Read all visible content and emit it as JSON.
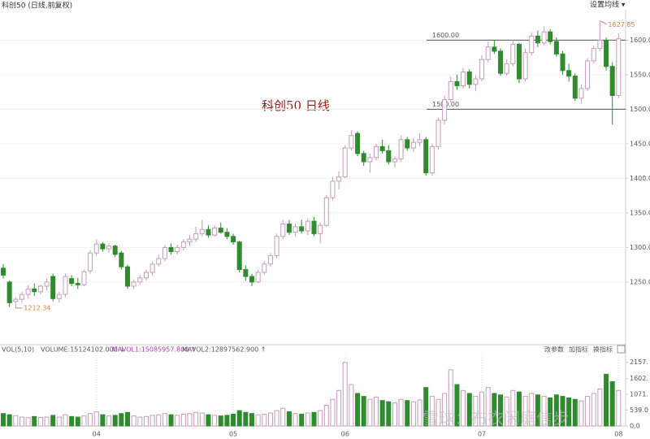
{
  "header": {
    "title": "科创50 (日线,前复权)",
    "ma_button": "设置均线 ▾"
  },
  "chart_data": {
    "type": "candlestick",
    "title": "科创50   日线",
    "up_color": "#c89ab8",
    "down_color": "#2e8b2e",
    "ylim": [
      1164,
      1644
    ],
    "yticks": [
      {
        "value": 1250,
        "label": "1250.00"
      },
      {
        "value": 1300,
        "label": "1300.00"
      },
      {
        "value": 1350,
        "label": "1350.00"
      },
      {
        "value": 1400,
        "label": "1400.00"
      },
      {
        "value": 1450,
        "label": "1450.00"
      },
      {
        "value": 1500,
        "label": "1500.00"
      },
      {
        "value": 1550,
        "label": "1550.00"
      },
      {
        "value": 1600,
        "label": "1600.00"
      }
    ],
    "grid": true,
    "xticks": [
      {
        "value": 15,
        "label": "04"
      },
      {
        "value": 37,
        "label": "05"
      },
      {
        "value": 55,
        "label": "06"
      },
      {
        "value": 77,
        "label": "07"
      },
      {
        "value": 99,
        "label": "08"
      }
    ],
    "hlines": [
      {
        "value": 1600,
        "label": "1600.00"
      },
      {
        "value": 1500,
        "label": "1500.00"
      }
    ],
    "annotations": [
      {
        "index": 2,
        "value": 1212.34,
        "label": "1212.34"
      },
      {
        "index": 96,
        "value": 1627.85,
        "label": "1627.85"
      }
    ],
    "candles": [
      [
        1270,
        1276,
        1255,
        1260
      ],
      [
        1250,
        1252,
        1214,
        1220
      ],
      [
        1222,
        1228,
        1212.34,
        1225
      ],
      [
        1225,
        1236,
        1220,
        1232
      ],
      [
        1232,
        1245,
        1226,
        1240
      ],
      [
        1240,
        1248,
        1230,
        1236
      ],
      [
        1236,
        1246,
        1232,
        1244
      ],
      [
        1244,
        1255,
        1238,
        1250
      ],
      [
        1258,
        1262,
        1222,
        1226
      ],
      [
        1226,
        1236,
        1220,
        1232
      ],
      [
        1232,
        1262,
        1228,
        1258
      ],
      [
        1255,
        1260,
        1244,
        1248
      ],
      [
        1248,
        1256,
        1240,
        1246
      ],
      [
        1246,
        1268,
        1244,
        1265
      ],
      [
        1266,
        1296,
        1262,
        1292
      ],
      [
        1292,
        1312,
        1288,
        1305
      ],
      [
        1305,
        1308,
        1294,
        1298
      ],
      [
        1298,
        1306,
        1292,
        1302
      ],
      [
        1302,
        1304,
        1286,
        1290
      ],
      [
        1292,
        1295,
        1268,
        1272
      ],
      [
        1272,
        1275,
        1240,
        1244
      ],
      [
        1244,
        1254,
        1240,
        1250
      ],
      [
        1250,
        1260,
        1246,
        1256
      ],
      [
        1256,
        1268,
        1252,
        1264
      ],
      [
        1264,
        1280,
        1260,
        1276
      ],
      [
        1276,
        1290,
        1272,
        1284
      ],
      [
        1284,
        1304,
        1280,
        1300
      ],
      [
        1300,
        1306,
        1290,
        1294
      ],
      [
        1294,
        1304,
        1290,
        1300
      ],
      [
        1300,
        1312,
        1296,
        1308
      ],
      [
        1308,
        1318,
        1302,
        1312
      ],
      [
        1312,
        1330,
        1308,
        1320
      ],
      [
        1320,
        1340,
        1316,
        1326
      ],
      [
        1326,
        1332,
        1314,
        1318
      ],
      [
        1318,
        1332,
        1316,
        1328
      ],
      [
        1328,
        1336,
        1320,
        1322
      ],
      [
        1322,
        1328,
        1312,
        1316
      ],
      [
        1316,
        1320,
        1304,
        1308
      ],
      [
        1308,
        1310,
        1264,
        1268
      ],
      [
        1268,
        1274,
        1252,
        1258
      ],
      [
        1258,
        1262,
        1244,
        1250
      ],
      [
        1250,
        1268,
        1248,
        1264
      ],
      [
        1264,
        1280,
        1260,
        1276
      ],
      [
        1276,
        1292,
        1272,
        1288
      ],
      [
        1288,
        1320,
        1284,
        1316
      ],
      [
        1316,
        1340,
        1312,
        1334
      ],
      [
        1334,
        1340,
        1318,
        1322
      ],
      [
        1322,
        1334,
        1316,
        1330
      ],
      [
        1330,
        1340,
        1320,
        1324
      ],
      [
        1324,
        1342,
        1318,
        1338
      ],
      [
        1338,
        1344,
        1316,
        1320
      ],
      [
        1320,
        1336,
        1306,
        1332
      ],
      [
        1332,
        1376,
        1330,
        1372
      ],
      [
        1372,
        1402,
        1368,
        1396
      ],
      [
        1396,
        1410,
        1384,
        1402
      ],
      [
        1402,
        1448,
        1400,
        1444
      ],
      [
        1444,
        1470,
        1440,
        1462
      ],
      [
        1465,
        1468,
        1432,
        1436
      ],
      [
        1436,
        1440,
        1418,
        1424
      ],
      [
        1424,
        1436,
        1408,
        1430
      ],
      [
        1430,
        1450,
        1426,
        1446
      ],
      [
        1446,
        1456,
        1436,
        1440
      ],
      [
        1440,
        1448,
        1420,
        1424
      ],
      [
        1424,
        1432,
        1416,
        1428
      ],
      [
        1428,
        1462,
        1424,
        1456
      ],
      [
        1456,
        1460,
        1440,
        1444
      ],
      [
        1444,
        1458,
        1438,
        1452
      ],
      [
        1452,
        1466,
        1446,
        1456
      ],
      [
        1456,
        1460,
        1404,
        1408
      ],
      [
        1408,
        1450,
        1404,
        1446
      ],
      [
        1446,
        1488,
        1442,
        1484
      ],
      [
        1484,
        1520,
        1478,
        1514
      ],
      [
        1514,
        1548,
        1510,
        1540
      ],
      [
        1540,
        1550,
        1528,
        1534
      ],
      [
        1534,
        1560,
        1530,
        1554
      ],
      [
        1554,
        1558,
        1530,
        1536
      ],
      [
        1536,
        1548,
        1526,
        1544
      ],
      [
        1544,
        1578,
        1540,
        1572
      ],
      [
        1572,
        1598,
        1568,
        1590
      ],
      [
        1590,
        1600,
        1580,
        1584
      ],
      [
        1584,
        1588,
        1548,
        1552
      ],
      [
        1552,
        1572,
        1548,
        1566
      ],
      [
        1566,
        1600,
        1562,
        1594
      ],
      [
        1594,
        1596,
        1538,
        1544
      ],
      [
        1544,
        1588,
        1540,
        1582
      ],
      [
        1582,
        1612,
        1578,
        1606
      ],
      [
        1606,
        1614,
        1590,
        1596
      ],
      [
        1596,
        1620,
        1592,
        1612
      ],
      [
        1612,
        1616,
        1594,
        1598
      ],
      [
        1598,
        1604,
        1576,
        1580
      ],
      [
        1580,
        1584,
        1550,
        1556
      ],
      [
        1556,
        1566,
        1540,
        1548
      ],
      [
        1548,
        1552,
        1512,
        1516
      ],
      [
        1516,
        1536,
        1508,
        1530
      ],
      [
        1530,
        1574,
        1526,
        1570
      ],
      [
        1570,
        1592,
        1566,
        1588
      ],
      [
        1588,
        1627.85,
        1584,
        1600
      ],
      [
        1600,
        1604,
        1556,
        1562
      ],
      [
        1562,
        1568,
        1478,
        1520
      ],
      [
        1520,
        1610,
        1516,
        1602
      ]
    ],
    "volume": {
      "indicator": "VOL(5,10)",
      "volume_text": "VOLUME:15124102.000 ↓",
      "mavol1_text": "MAVOL1:15085957.800 ↑",
      "mavol2_text": "MAVOL2:12897562.900 ↑",
      "buttons": [
        "改参数",
        "加指标",
        "换指标"
      ],
      "ylim": [
        0,
        2390
      ],
      "yticks": [
        {
          "value": 2157,
          "label": "2157."
        },
        {
          "value": 1602,
          "label": "1602."
        },
        {
          "value": 1071,
          "label": "1071."
        },
        {
          "value": 539,
          "label": "539.0"
        },
        {
          "value": 0,
          "label": "0.0"
        }
      ],
      "values": [
        420,
        380,
        350,
        300,
        280,
        320,
        290,
        300,
        360,
        300,
        380,
        320,
        300,
        340,
        420,
        480,
        380,
        340,
        360,
        420,
        460,
        340,
        300,
        320,
        360,
        380,
        420,
        380,
        360,
        400,
        420,
        460,
        440,
        380,
        360,
        340,
        360,
        400,
        520,
        460,
        420,
        380,
        400,
        440,
        520,
        600,
        480,
        420,
        400,
        440,
        460,
        520,
        700,
        900,
        1200,
        2150,
        1400,
        1100,
        1000,
        900,
        980,
        860,
        820,
        780,
        900,
        860,
        820,
        880,
        1300,
        1000,
        900,
        1100,
        1900,
        1400,
        1200,
        1100,
        1000,
        1150,
        1300,
        1100,
        1050,
        980,
        1200,
        1150,
        1000,
        1100,
        1050,
        1000,
        950,
        1050,
        1000,
        950,
        900,
        850,
        1000,
        1100,
        1250,
        1750,
        1500,
        1200
      ]
    },
    "watermark": "雪球：布衣闲庭信步"
  }
}
